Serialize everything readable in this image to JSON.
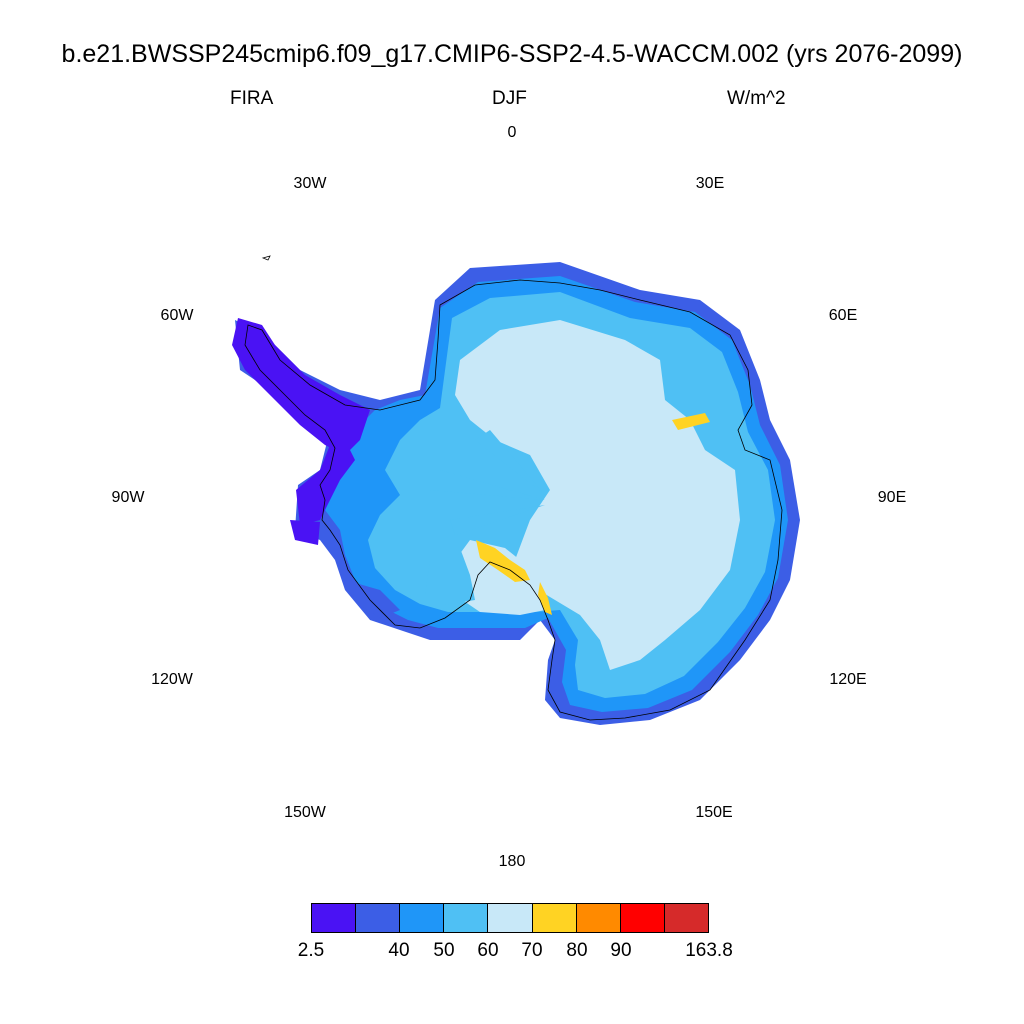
{
  "title": "b.e21.BWSSP245cmip6.f09_g17.CMIP6-SSP2-4.5-WACCM.002 (yrs 2076-2099)",
  "subtitle": {
    "left": "FIRA",
    "center": "DJF",
    "right": "W/m^2"
  },
  "longitude_labels": [
    "0",
    "30E",
    "60E",
    "90E",
    "120E",
    "150E",
    "180",
    "150W",
    "120W",
    "90W",
    "60W",
    "30W"
  ],
  "projection": "south-polar-stereographic",
  "colorbar": {
    "colors": [
      "#4a12f4",
      "#3c5ee6",
      "#1f96f8",
      "#4fc0f4",
      "#c8e8f8",
      "#ffd323",
      "#ff8a00",
      "#ff0000",
      "#d62a2a"
    ],
    "tick_labels": [
      "2.5",
      "40",
      "50",
      "60",
      "70",
      "80",
      "90",
      "163.8"
    ]
  },
  "map_regions": {
    "interior_plateau": "60-70",
    "coastal_ring": "50-60",
    "coastal_edge": "40-50",
    "peninsula_and_west": "2.5-40",
    "warm_patches": "70-80"
  }
}
